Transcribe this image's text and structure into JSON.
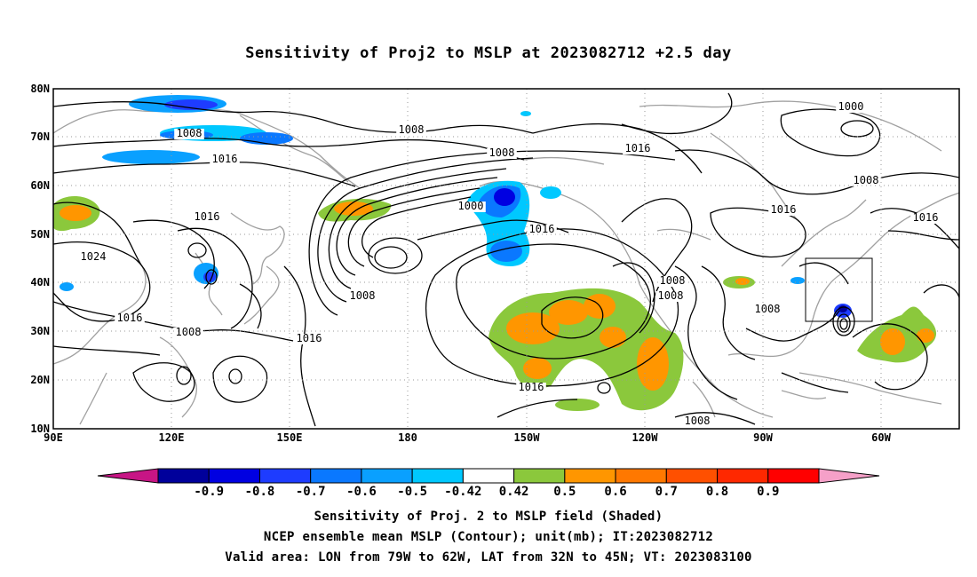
{
  "title": "Sensitivity of Proj2 to MSLP at 2023082712 +2.5 day",
  "map": {
    "lat_labels": [
      "80N",
      "70N",
      "60N",
      "50N",
      "40N",
      "30N",
      "20N",
      "10N"
    ],
    "lon_labels": [
      "90E",
      "120E",
      "150E",
      "180",
      "150W",
      "120W",
      "90W",
      "60W"
    ],
    "contour_labels": [
      "1008",
      "1008",
      "1016",
      "1008",
      "1016",
      "1000",
      "1016",
      "1016",
      "1024",
      "1008",
      "1008",
      "1008",
      "1008",
      "1008",
      "1016",
      "1016",
      "1008",
      "1016",
      "1000",
      "1008",
      "1016",
      "1016"
    ],
    "valid_box_label": "Valid area"
  },
  "colorbar": {
    "colors": [
      "#c71585",
      "#00009b",
      "#0000e1",
      "#1e3cff",
      "#0a78ff",
      "#0aa0ff",
      "#00c8ff",
      "#ffffff",
      "#8bc83c",
      "#ff9600",
      "#ff7800",
      "#ff5000",
      "#ff2800",
      "#ff0000",
      "#f5a0c8"
    ],
    "labels": [
      "-0.9",
      "-0.8",
      "-0.7",
      "-0.6",
      "-0.5",
      "-0.42",
      "0.42",
      "0.5",
      "0.6",
      "0.7",
      "0.8",
      "0.9"
    ]
  },
  "captions": [
    "Sensitivity of Proj. 2 to MSLP field (Shaded)",
    "NCEP ensemble mean MSLP (Contour); unit(mb); IT:2023082712",
    "Valid area: LON from 79W to 62W, LAT from 32N to 45N; VT: 2023083100"
  ]
}
